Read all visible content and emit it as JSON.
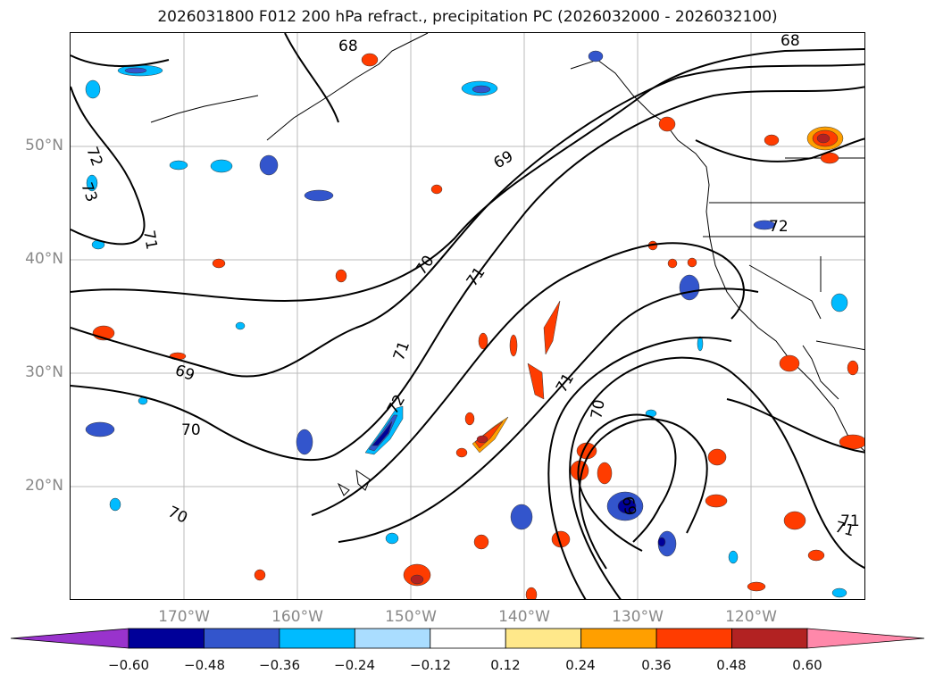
{
  "title": "2026031800 F012 200 hPa refract., precipitation PC (2026032000 - 2026032100)",
  "map": {
    "lat_ticks": [
      "50°N",
      "40°N",
      "30°N",
      "20°N"
    ],
    "lon_ticks": [
      "170°W",
      "160°W",
      "150°W",
      "140°W",
      "130°W",
      "120°W"
    ],
    "contour_labels": [
      "68",
      "68",
      "72",
      "73",
      "71",
      "69",
      "70",
      "71",
      "71",
      "69",
      "70",
      "71",
      "72",
      "71",
      "70",
      "69",
      "70",
      "71",
      "72"
    ],
    "grid": true
  },
  "colorbar": {
    "ticks": [
      "−0.60",
      "−0.48",
      "−0.36",
      "−0.24",
      "−0.12",
      "0.12",
      "0.24",
      "0.36",
      "0.48",
      "0.60"
    ],
    "colors": [
      "#9933cc",
      "#000099",
      "#3355cc",
      "#00bbff",
      "#aaddff",
      "#ffffff",
      "#ffe88a",
      "#ff9f00",
      "#ff3c00",
      "#b22222",
      "#ff88aa"
    ],
    "extend": "both"
  }
}
